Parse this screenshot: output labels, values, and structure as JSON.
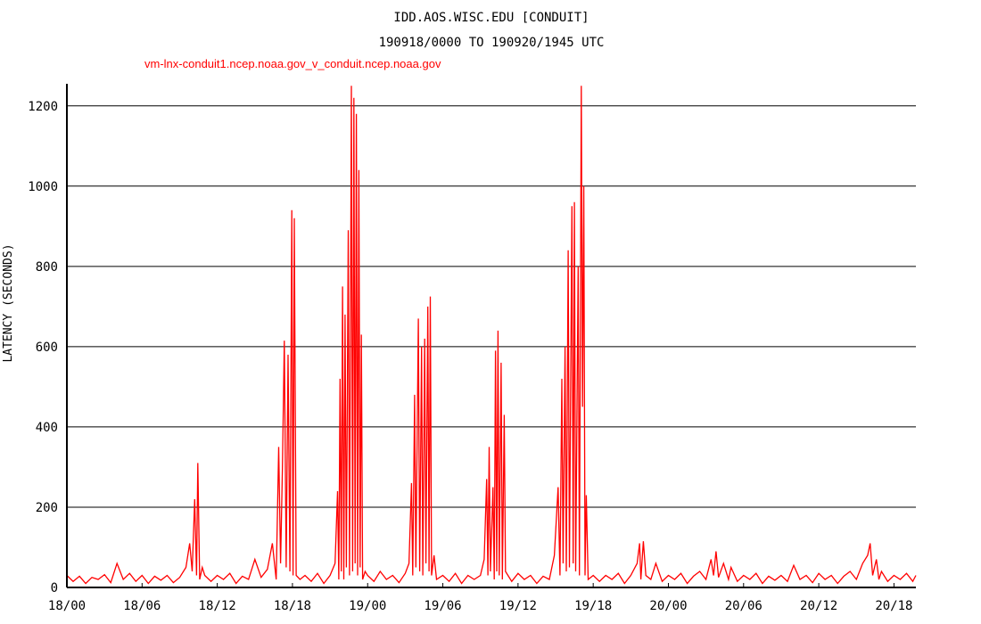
{
  "chart_data": {
    "type": "line",
    "title": "IDD.AOS.WISC.EDU [CONDUIT]",
    "subtitle": "190918/0000 TO 190920/1945 UTC",
    "xlabel": "",
    "ylabel": "LATENCY (SECONDS)",
    "x_unit": "hours since 18/00 UTC",
    "xlim": [
      0,
      67.75
    ],
    "ylim": [
      0,
      1255
    ],
    "grid": "horizontal",
    "x_ticks": [
      {
        "value": 0,
        "label": "18/00"
      },
      {
        "value": 6,
        "label": "18/06"
      },
      {
        "value": 12,
        "label": "18/12"
      },
      {
        "value": 18,
        "label": "18/18"
      },
      {
        "value": 24,
        "label": "19/00"
      },
      {
        "value": 30,
        "label": "19/06"
      },
      {
        "value": 36,
        "label": "19/12"
      },
      {
        "value": 42,
        "label": "19/18"
      },
      {
        "value": 48,
        "label": "20/00"
      },
      {
        "value": 54,
        "label": "20/06"
      },
      {
        "value": 60,
        "label": "20/12"
      },
      {
        "value": 66,
        "label": "20/18"
      }
    ],
    "y_ticks": [
      0,
      200,
      400,
      600,
      800,
      1000,
      1200
    ],
    "series": [
      {
        "name": "vm-lnx-conduit1.ncep.noaa.gov_v_conduit.ncep.noaa.gov",
        "color": "#ff0000",
        "points": [
          [
            0,
            30
          ],
          [
            0.5,
            15
          ],
          [
            1,
            28
          ],
          [
            1.5,
            10
          ],
          [
            2,
            25
          ],
          [
            2.5,
            20
          ],
          [
            3,
            32
          ],
          [
            3.5,
            12
          ],
          [
            4,
            60
          ],
          [
            4.5,
            20
          ],
          [
            5,
            35
          ],
          [
            5.5,
            15
          ],
          [
            6,
            30
          ],
          [
            6.5,
            10
          ],
          [
            7,
            28
          ],
          [
            7.5,
            18
          ],
          [
            8,
            30
          ],
          [
            8.5,
            12
          ],
          [
            9,
            25
          ],
          [
            9.5,
            50
          ],
          [
            9.8,
            110
          ],
          [
            10,
            40
          ],
          [
            10.2,
            220
          ],
          [
            10.35,
            30
          ],
          [
            10.45,
            310
          ],
          [
            10.6,
            20
          ],
          [
            10.8,
            50
          ],
          [
            11,
            30
          ],
          [
            11.5,
            15
          ],
          [
            12,
            30
          ],
          [
            12.5,
            20
          ],
          [
            13,
            35
          ],
          [
            13.5,
            10
          ],
          [
            14,
            28
          ],
          [
            14.5,
            20
          ],
          [
            15,
            70
          ],
          [
            15.5,
            25
          ],
          [
            16,
            45
          ],
          [
            16.4,
            110
          ],
          [
            16.7,
            20
          ],
          [
            16.9,
            350
          ],
          [
            17.05,
            60
          ],
          [
            17.2,
            300
          ],
          [
            17.35,
            615
          ],
          [
            17.5,
            50
          ],
          [
            17.65,
            580
          ],
          [
            17.8,
            40
          ],
          [
            17.95,
            940
          ],
          [
            18.05,
            30
          ],
          [
            18.15,
            920
          ],
          [
            18.3,
            30
          ],
          [
            18.6,
            20
          ],
          [
            19,
            30
          ],
          [
            19.5,
            15
          ],
          [
            20,
            35
          ],
          [
            20.5,
            10
          ],
          [
            21,
            30
          ],
          [
            21.4,
            60
          ],
          [
            21.6,
            240
          ],
          [
            21.7,
            20
          ],
          [
            21.8,
            520
          ],
          [
            21.9,
            40
          ],
          [
            22.0,
            750
          ],
          [
            22.1,
            20
          ],
          [
            22.2,
            680
          ],
          [
            22.3,
            50
          ],
          [
            22.45,
            890
          ],
          [
            22.55,
            30
          ],
          [
            22.7,
            1250
          ],
          [
            22.8,
            40
          ],
          [
            22.9,
            1220
          ],
          [
            23.0,
            60
          ],
          [
            23.1,
            1180
          ],
          [
            23.2,
            30
          ],
          [
            23.3,
            1040
          ],
          [
            23.4,
            50
          ],
          [
            23.5,
            630
          ],
          [
            23.6,
            20
          ],
          [
            23.8,
            40
          ],
          [
            24,
            30
          ],
          [
            24.5,
            15
          ],
          [
            25,
            40
          ],
          [
            25.5,
            20
          ],
          [
            26,
            30
          ],
          [
            26.5,
            12
          ],
          [
            27,
            35
          ],
          [
            27.3,
            60
          ],
          [
            27.5,
            260
          ],
          [
            27.6,
            30
          ],
          [
            27.75,
            480
          ],
          [
            27.85,
            50
          ],
          [
            28.05,
            670
          ],
          [
            28.15,
            40
          ],
          [
            28.3,
            600
          ],
          [
            28.4,
            30
          ],
          [
            28.55,
            620
          ],
          [
            28.65,
            60
          ],
          [
            28.8,
            700
          ],
          [
            28.9,
            40
          ],
          [
            29.0,
            725
          ],
          [
            29.1,
            30
          ],
          [
            29.3,
            80
          ],
          [
            29.5,
            20
          ],
          [
            30,
            30
          ],
          [
            30.5,
            15
          ],
          [
            31,
            35
          ],
          [
            31.5,
            10
          ],
          [
            32,
            30
          ],
          [
            32.5,
            20
          ],
          [
            33,
            30
          ],
          [
            33.3,
            70
          ],
          [
            33.5,
            270
          ],
          [
            33.6,
            30
          ],
          [
            33.7,
            350
          ],
          [
            33.8,
            40
          ],
          [
            34.0,
            250
          ],
          [
            34.1,
            20
          ],
          [
            34.2,
            590
          ],
          [
            34.3,
            40
          ],
          [
            34.4,
            640
          ],
          [
            34.5,
            30
          ],
          [
            34.65,
            560
          ],
          [
            34.75,
            20
          ],
          [
            34.9,
            430
          ],
          [
            35.0,
            40
          ],
          [
            35.2,
            30
          ],
          [
            35.5,
            15
          ],
          [
            36,
            35
          ],
          [
            36.5,
            20
          ],
          [
            37,
            30
          ],
          [
            37.5,
            10
          ],
          [
            38,
            28
          ],
          [
            38.5,
            20
          ],
          [
            38.9,
            80
          ],
          [
            39.2,
            250
          ],
          [
            39.35,
            30
          ],
          [
            39.5,
            520
          ],
          [
            39.6,
            60
          ],
          [
            39.75,
            600
          ],
          [
            39.85,
            40
          ],
          [
            40.0,
            840
          ],
          [
            40.1,
            50
          ],
          [
            40.3,
            950
          ],
          [
            40.4,
            60
          ],
          [
            40.5,
            960
          ],
          [
            40.6,
            40
          ],
          [
            40.8,
            800
          ],
          [
            40.9,
            30
          ],
          [
            41.05,
            1250
          ],
          [
            41.15,
            450
          ],
          [
            41.25,
            1000
          ],
          [
            41.35,
            30
          ],
          [
            41.45,
            230
          ],
          [
            41.6,
            20
          ],
          [
            42,
            30
          ],
          [
            42.5,
            15
          ],
          [
            43,
            30
          ],
          [
            43.5,
            20
          ],
          [
            44,
            35
          ],
          [
            44.5,
            10
          ],
          [
            45,
            30
          ],
          [
            45.5,
            60
          ],
          [
            45.7,
            110
          ],
          [
            45.8,
            20
          ],
          [
            46,
            115
          ],
          [
            46.2,
            30
          ],
          [
            46.6,
            20
          ],
          [
            47,
            60
          ],
          [
            47.5,
            15
          ],
          [
            48,
            30
          ],
          [
            48.5,
            20
          ],
          [
            49,
            35
          ],
          [
            49.5,
            10
          ],
          [
            50,
            28
          ],
          [
            50.5,
            40
          ],
          [
            51,
            20
          ],
          [
            51.4,
            70
          ],
          [
            51.6,
            30
          ],
          [
            51.8,
            90
          ],
          [
            52,
            25
          ],
          [
            52.4,
            60
          ],
          [
            52.8,
            20
          ],
          [
            53,
            50
          ],
          [
            53.5,
            15
          ],
          [
            54,
            30
          ],
          [
            54.5,
            20
          ],
          [
            55,
            35
          ],
          [
            55.5,
            10
          ],
          [
            56,
            28
          ],
          [
            56.5,
            18
          ],
          [
            57,
            30
          ],
          [
            57.5,
            15
          ],
          [
            58,
            55
          ],
          [
            58.5,
            20
          ],
          [
            59,
            30
          ],
          [
            59.5,
            12
          ],
          [
            60,
            35
          ],
          [
            60.5,
            20
          ],
          [
            61,
            30
          ],
          [
            61.5,
            10
          ],
          [
            62,
            28
          ],
          [
            62.5,
            40
          ],
          [
            63,
            20
          ],
          [
            63.5,
            60
          ],
          [
            63.9,
            80
          ],
          [
            64.1,
            110
          ],
          [
            64.3,
            30
          ],
          [
            64.6,
            70
          ],
          [
            64.8,
            20
          ],
          [
            65,
            40
          ],
          [
            65.5,
            15
          ],
          [
            66,
            30
          ],
          [
            66.5,
            20
          ],
          [
            67,
            35
          ],
          [
            67.5,
            15
          ],
          [
            67.75,
            30
          ]
        ]
      }
    ]
  }
}
